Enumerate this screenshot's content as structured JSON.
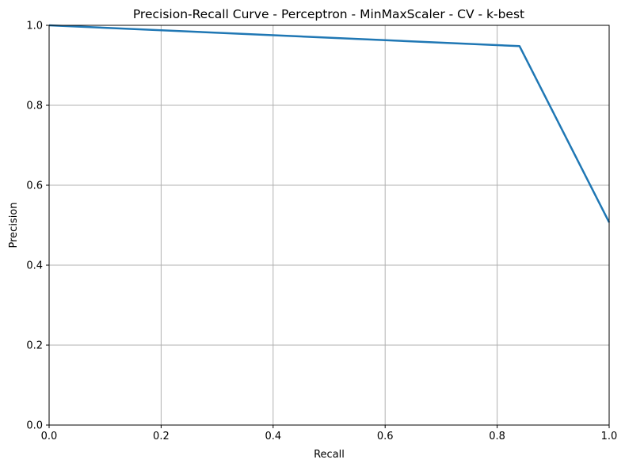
{
  "chart_data": {
    "type": "line",
    "title": "Precision-Recall Curve - Perceptron - MinMaxScaler - CV - k-best",
    "xlabel": "Recall",
    "ylabel": "Precision",
    "xlim": [
      0,
      1
    ],
    "ylim": [
      0,
      1
    ],
    "xticks": [
      "0.0",
      "0.2",
      "0.4",
      "0.6",
      "0.8",
      "1.0"
    ],
    "yticks": [
      "0.0",
      "0.2",
      "0.4",
      "0.6",
      "0.8",
      "1.0"
    ],
    "grid": true,
    "series": [
      {
        "color": "#1f77b4",
        "x": [
          0.0,
          0.84,
          1.0
        ],
        "y": [
          1.0,
          0.948,
          0.507
        ]
      }
    ]
  }
}
